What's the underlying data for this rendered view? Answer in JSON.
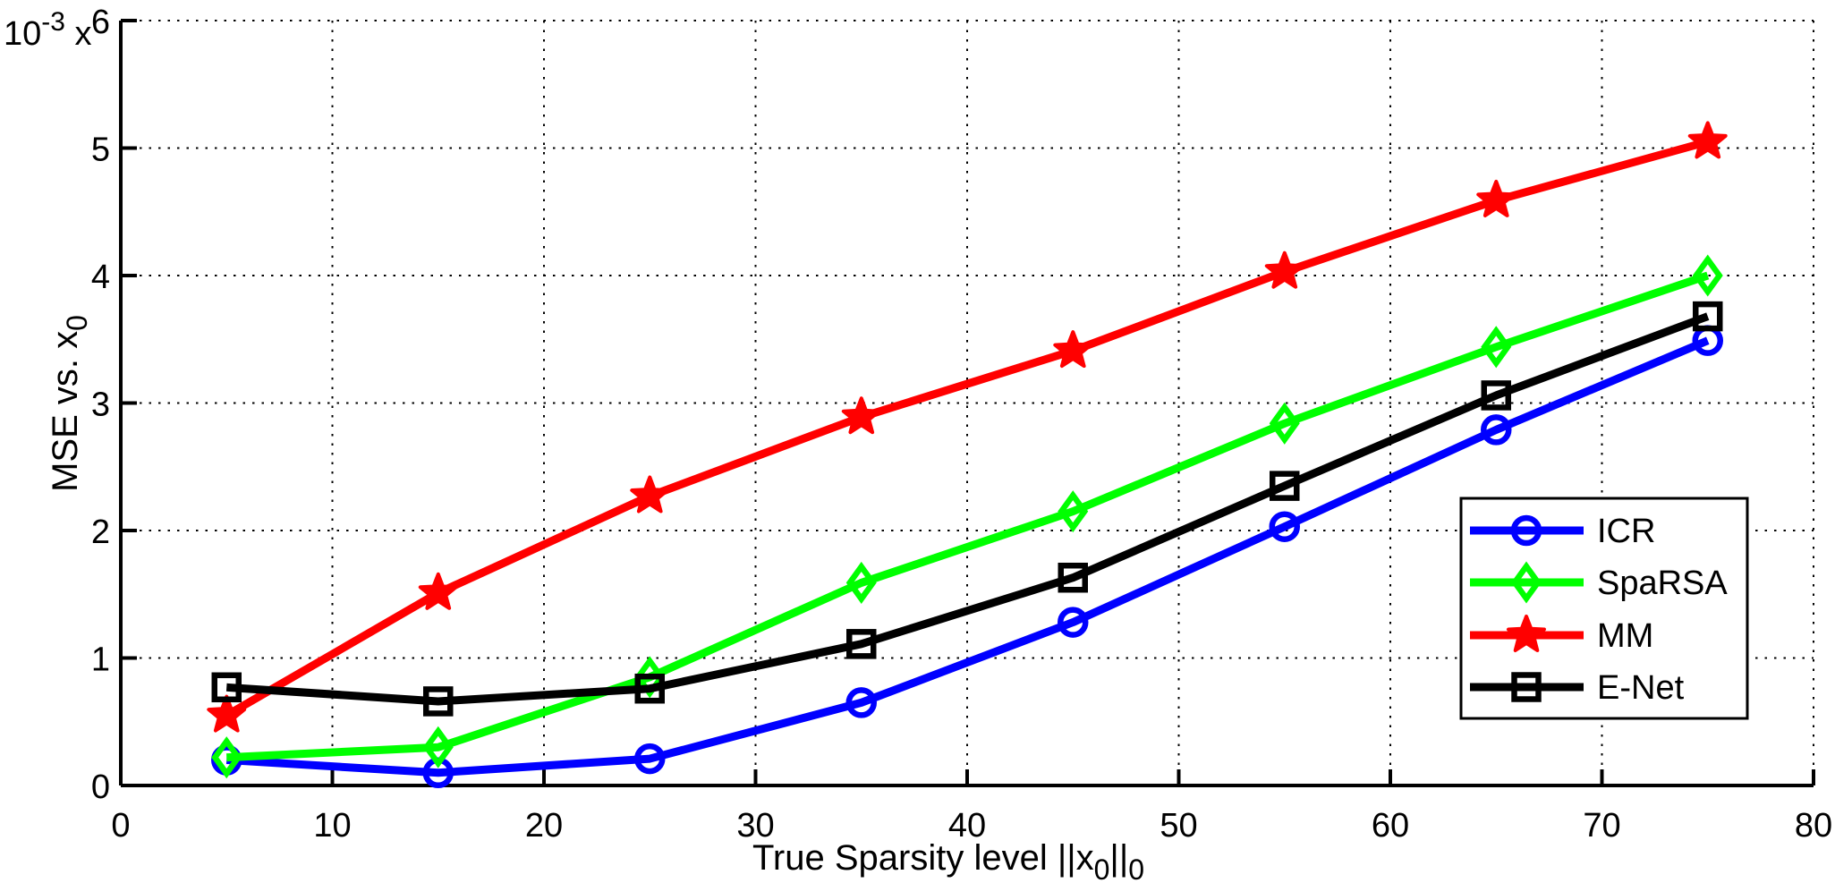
{
  "figure": {
    "background": "#ffffff",
    "axis_color": "#000000",
    "grid_color": "#000000"
  },
  "chart_data": {
    "type": "line",
    "title": "",
    "xlabel": "True Sparsity level ||x0||0",
    "ylabel": "MSE vs. x0",
    "y_scale_label": "10^-3 x",
    "xlabel_parts": [
      {
        "t": "True Sparsity level ||x"
      },
      {
        "t": "0",
        "sub": true
      },
      {
        "t": "||"
      },
      {
        "t": "0",
        "sub": true
      }
    ],
    "ylabel_parts": [
      {
        "t": "MSE vs. x"
      },
      {
        "t": "0",
        "sub": true
      }
    ],
    "y_scale_parts": [
      {
        "t": "10"
      },
      {
        "t": "-3",
        "sup": true
      },
      {
        "t": " x"
      }
    ],
    "xlim": [
      0,
      80
    ],
    "ylim": [
      0,
      6
    ],
    "xticks": [
      0,
      10,
      20,
      30,
      40,
      50,
      60,
      70,
      80
    ],
    "yticks": [
      0,
      1,
      2,
      3,
      4,
      5,
      6
    ],
    "grid": true,
    "legend_position": "right-middle",
    "x": [
      5,
      15,
      25,
      35,
      45,
      55,
      65,
      75
    ],
    "series": [
      {
        "name": "ICR",
        "color": "#0000ff",
        "marker": "circle",
        "values": [
          0.2,
          0.1,
          0.21,
          0.65,
          1.28,
          2.03,
          2.79,
          3.49
        ]
      },
      {
        "name": "SpaRSA",
        "color": "#00ff00",
        "marker": "diamond",
        "values": [
          0.22,
          0.3,
          0.85,
          1.59,
          2.15,
          2.84,
          3.44,
          4.0
        ]
      },
      {
        "name": "MM",
        "color": "#ff0000",
        "marker": "star",
        "values": [
          0.55,
          1.51,
          2.27,
          2.89,
          3.41,
          4.03,
          4.59,
          5.05
        ]
      },
      {
        "name": "E-Net",
        "color": "#000000",
        "marker": "square",
        "values": [
          0.77,
          0.66,
          0.76,
          1.11,
          1.63,
          2.35,
          3.06,
          3.68
        ]
      }
    ],
    "legend_entries": [
      "ICR",
      "SpaRSA",
      "MM",
      "E-Net"
    ]
  }
}
